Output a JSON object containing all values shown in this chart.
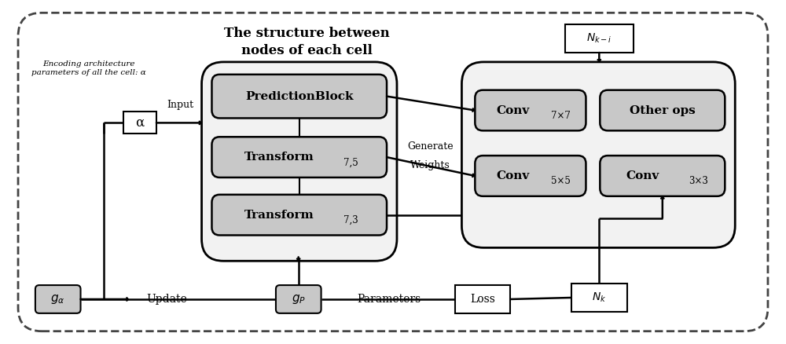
{
  "fig_width": 10.0,
  "fig_height": 4.38,
  "bg_color": "#ffffff",
  "gray": "#c8c8c8",
  "white": "#ffffff",
  "black": "#000000",
  "outer_bg": "#f5f5f5",
  "title": "The structure between\nnodes of each cell",
  "encoding_text": "Encoding architecture\nparameters of all the cell: α",
  "input_label": "Input",
  "generate_label": "Generate",
  "weights_label": "Weights",
  "update_label": "Update",
  "parameters_label": "Parameters",
  "prediction_label": "PredictionBlock",
  "transform75_main": "Transform",
  "transform75_sub": "7,5",
  "transform73_main": "Transform",
  "transform73_sub": "7,3",
  "conv77_main": "Conv",
  "conv77_sub": "7×7",
  "conv55_main": "Conv",
  "conv55_sub": "5×5",
  "conv33_main": "Conv",
  "conv33_sub": "3×3",
  "other_ops_label": "Other ops",
  "alpha_label": "α",
  "g_alpha_label": "$g_{\\alpha}$",
  "g_p_label": "$g_P$",
  "loss_label": "Loss",
  "nk_label": "$N_k$",
  "nki_label": "$N_{k-i}$"
}
